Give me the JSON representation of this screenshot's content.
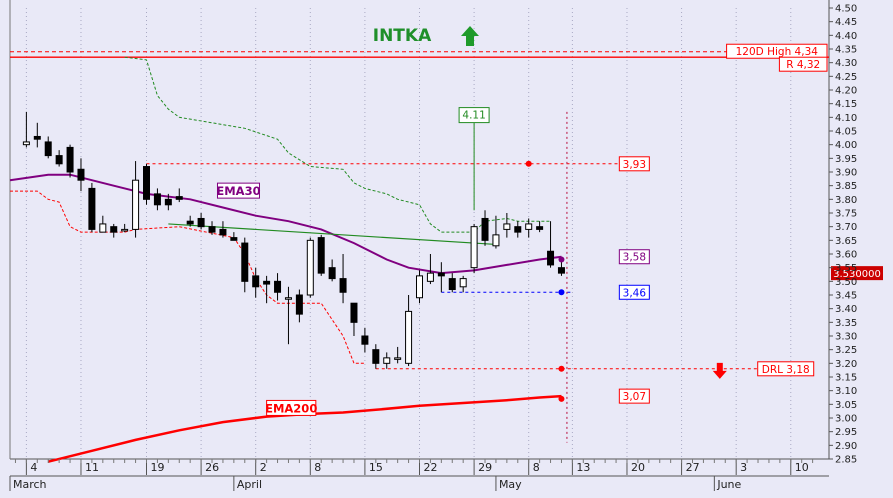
{
  "chart_data": {
    "type": "candlestick",
    "title": "INTKA",
    "trend_arrow": "up",
    "y_axis": {
      "range": [
        2.85,
        4.5
      ],
      "ticks": [
        2.85,
        2.9,
        2.95,
        3.0,
        3.05,
        3.1,
        3.15,
        3.2,
        3.25,
        3.3,
        3.35,
        3.4,
        3.45,
        3.5,
        3.55,
        3.6,
        3.65,
        3.7,
        3.75,
        3.8,
        3.85,
        3.9,
        3.95,
        4.0,
        4.05,
        4.1,
        4.15,
        4.2,
        4.25,
        4.3,
        4.35,
        4.4,
        4.45,
        4.5
      ],
      "tick_labels": [
        "2.85",
        "2.90",
        "2.95",
        "3.00",
        "3.05",
        "3.10",
        "3.15",
        "3.20",
        "3.25",
        "3.30",
        "3.35",
        "3.40",
        "3.45",
        "3.50",
        "3.55",
        "3.60",
        "3.65",
        "3.70",
        "3.75",
        "3.80",
        "3.85",
        "3.90",
        "3.95",
        "4.00",
        "4.05",
        "4.10",
        "4.15",
        "4.20",
        "4.25",
        "4.30",
        "4.35",
        "4.40",
        "4.45",
        "4.50"
      ],
      "position": "right"
    },
    "x_axis": {
      "day_labels": [
        "4",
        "11",
        "19",
        "26",
        "2",
        "8",
        "15",
        "22",
        "29",
        "8",
        "13",
        "20",
        "27",
        "3",
        "10"
      ],
      "day_positions": [
        0,
        5,
        11,
        16,
        21,
        26,
        31,
        36,
        41,
        46,
        50,
        55,
        60,
        65,
        70
      ],
      "month_labels": [
        {
          "label": "March",
          "pos": -1.5
        },
        {
          "label": "April",
          "pos": 19
        },
        {
          "label": "May",
          "pos": 43
        },
        {
          "label": "June",
          "pos": 63
        }
      ],
      "range": [
        -1.5,
        73.5
      ]
    },
    "candles": [
      {
        "o": 4.0,
        "h": 4.12,
        "l": 3.99,
        "c": 4.01
      },
      {
        "o": 4.03,
        "h": 4.08,
        "l": 3.99,
        "c": 4.02
      },
      {
        "o": 4.01,
        "h": 4.03,
        "l": 3.95,
        "c": 3.96
      },
      {
        "o": 3.96,
        "h": 3.98,
        "l": 3.92,
        "c": 3.93
      },
      {
        "o": 3.99,
        "h": 4.0,
        "l": 3.88,
        "c": 3.9
      },
      {
        "o": 3.91,
        "h": 3.95,
        "l": 3.83,
        "c": 3.87
      },
      {
        "o": 3.84,
        "h": 3.86,
        "l": 3.68,
        "c": 3.69
      },
      {
        "o": 3.68,
        "h": 3.74,
        "l": 3.68,
        "c": 3.71
      },
      {
        "o": 3.7,
        "h": 3.71,
        "l": 3.66,
        "c": 3.68
      },
      {
        "o": 3.69,
        "h": 3.71,
        "l": 3.68,
        "c": 3.69
      },
      {
        "o": 3.69,
        "h": 3.94,
        "l": 3.66,
        "c": 3.87
      },
      {
        "o": 3.92,
        "h": 3.93,
        "l": 3.78,
        "c": 3.8
      },
      {
        "o": 3.82,
        "h": 3.84,
        "l": 3.76,
        "c": 3.78
      },
      {
        "o": 3.8,
        "h": 3.82,
        "l": 3.76,
        "c": 3.78
      },
      {
        "o": 3.81,
        "h": 3.84,
        "l": 3.79,
        "c": 3.8
      },
      {
        "o": 3.72,
        "h": 3.74,
        "l": 3.7,
        "c": 3.71
      },
      {
        "o": 3.73,
        "h": 3.75,
        "l": 3.69,
        "c": 3.7
      },
      {
        "o": 3.7,
        "h": 3.72,
        "l": 3.67,
        "c": 3.68
      },
      {
        "o": 3.69,
        "h": 3.72,
        "l": 3.66,
        "c": 3.67
      },
      {
        "o": 3.66,
        "h": 3.68,
        "l": 3.65,
        "c": 3.65
      },
      {
        "o": 3.64,
        "h": 3.66,
        "l": 3.46,
        "c": 3.5
      },
      {
        "o": 3.52,
        "h": 3.55,
        "l": 3.44,
        "c": 3.48
      },
      {
        "o": 3.5,
        "h": 3.52,
        "l": 3.42,
        "c": 3.49
      },
      {
        "o": 3.5,
        "h": 3.53,
        "l": 3.43,
        "c": 3.46
      },
      {
        "o": 3.44,
        "h": 3.48,
        "l": 3.27,
        "c": 3.44
      },
      {
        "o": 3.45,
        "h": 3.47,
        "l": 3.35,
        "c": 3.38
      },
      {
        "o": 3.45,
        "h": 3.66,
        "l": 3.44,
        "c": 3.65
      },
      {
        "o": 3.66,
        "h": 3.67,
        "l": 3.52,
        "c": 3.53
      },
      {
        "o": 3.55,
        "h": 3.58,
        "l": 3.5,
        "c": 3.51
      },
      {
        "o": 3.51,
        "h": 3.6,
        "l": 3.42,
        "c": 3.46
      },
      {
        "o": 3.42,
        "h": 3.42,
        "l": 3.3,
        "c": 3.35
      },
      {
        "o": 3.3,
        "h": 3.33,
        "l": 3.24,
        "c": 3.27
      },
      {
        "o": 3.25,
        "h": 3.27,
        "l": 3.18,
        "c": 3.2
      },
      {
        "o": 3.2,
        "h": 3.24,
        "l": 3.18,
        "c": 3.22
      },
      {
        "o": 3.22,
        "h": 3.26,
        "l": 3.2,
        "c": 3.22
      },
      {
        "o": 3.2,
        "h": 3.45,
        "l": 3.19,
        "c": 3.39
      },
      {
        "o": 3.44,
        "h": 3.54,
        "l": 3.42,
        "c": 3.52
      },
      {
        "o": 3.5,
        "h": 3.6,
        "l": 3.49,
        "c": 3.53
      },
      {
        "o": 3.53,
        "h": 3.57,
        "l": 3.46,
        "c": 3.52
      },
      {
        "o": 3.51,
        "h": 3.53,
        "l": 3.46,
        "c": 3.47
      },
      {
        "o": 3.48,
        "h": 3.52,
        "l": 3.46,
        "c": 3.51
      },
      {
        "o": 3.55,
        "h": 3.71,
        "l": 3.53,
        "c": 3.7
      },
      {
        "o": 3.73,
        "h": 3.76,
        "l": 3.63,
        "c": 3.65
      },
      {
        "o": 3.63,
        "h": 3.74,
        "l": 3.62,
        "c": 3.67
      },
      {
        "o": 3.69,
        "h": 3.75,
        "l": 3.66,
        "c": 3.71
      },
      {
        "o": 3.7,
        "h": 3.72,
        "l": 3.66,
        "c": 3.68
      },
      {
        "o": 3.69,
        "h": 3.73,
        "l": 3.66,
        "c": 3.71
      },
      {
        "o": 3.7,
        "h": 3.72,
        "l": 3.68,
        "c": 3.69
      },
      {
        "o": 3.61,
        "h": 3.72,
        "l": 3.55,
        "c": 3.56
      },
      {
        "o": 3.55,
        "h": 3.58,
        "l": 3.52,
        "c": 3.53
      }
    ],
    "ema30": {
      "label": "EMA30",
      "color": "#800080",
      "points": [
        [
          -1.5,
          3.87
        ],
        [
          2,
          3.89
        ],
        [
          4,
          3.89
        ],
        [
          8,
          3.85
        ],
        [
          11,
          3.82
        ],
        [
          15,
          3.8
        ],
        [
          18,
          3.77
        ],
        [
          21,
          3.74
        ],
        [
          24,
          3.72
        ],
        [
          27,
          3.69
        ],
        [
          30,
          3.64
        ],
        [
          33,
          3.58
        ],
        [
          35,
          3.55
        ],
        [
          38,
          3.53
        ],
        [
          41,
          3.54
        ],
        [
          44,
          3.56
        ],
        [
          47,
          3.58
        ],
        [
          49,
          3.59
        ]
      ]
    },
    "ema200": {
      "label": "EMA200",
      "color": "#ff0000",
      "points": [
        [
          2,
          2.84
        ],
        [
          6,
          2.88
        ],
        [
          10,
          2.92
        ],
        [
          14,
          2.955
        ],
        [
          18,
          2.985
        ],
        [
          22,
          3.005
        ],
        [
          26,
          3.015
        ],
        [
          29,
          3.02
        ],
        [
          32,
          3.03
        ],
        [
          36,
          3.045
        ],
        [
          40,
          3.055
        ],
        [
          44,
          3.065
        ],
        [
          47,
          3.075
        ],
        [
          49,
          3.08
        ]
      ]
    },
    "lines": {
      "high120d": {
        "label": "120D High 4,34",
        "value": 4.34,
        "color": "#ff0000"
      },
      "resistance": {
        "label": "R 4,32",
        "value": 4.32,
        "color": "#ff0000"
      },
      "drl": {
        "label": "DRL 3,18",
        "value": 3.18,
        "color": "#ff0000"
      }
    },
    "green_trendline": {
      "from": [
        13,
        3.71
      ],
      "to": [
        43,
        3.635
      ],
      "color": "#228b22"
    },
    "green_dashed_stop": {
      "color": "#228b22",
      "points": [
        [
          9,
          4.32
        ],
        [
          11,
          4.31
        ],
        [
          12,
          4.18
        ],
        [
          13,
          4.13
        ],
        [
          14,
          4.1
        ],
        [
          17,
          4.08
        ],
        [
          20,
          4.06
        ],
        [
          23,
          4.02
        ],
        [
          24,
          3.97
        ],
        [
          26,
          3.92
        ],
        [
          29,
          3.91
        ],
        [
          30,
          3.86
        ],
        [
          31,
          3.84
        ],
        [
          33,
          3.82
        ],
        [
          34,
          3.8
        ],
        [
          36,
          3.78
        ],
        [
          37,
          3.71
        ],
        [
          38,
          3.68
        ],
        [
          41,
          3.68
        ],
        [
          42,
          3.72
        ],
        [
          44,
          3.73
        ],
        [
          45,
          3.72
        ],
        [
          47,
          3.72
        ],
        [
          48,
          3.72
        ]
      ]
    },
    "red_dashed_support": {
      "color": "#ff0000",
      "points": [
        [
          -1.5,
          3.83
        ],
        [
          1,
          3.83
        ],
        [
          2,
          3.8
        ],
        [
          3,
          3.79
        ],
        [
          4,
          3.7
        ],
        [
          5,
          3.68
        ],
        [
          9,
          3.68
        ],
        [
          10,
          3.69
        ],
        [
          14,
          3.7
        ],
        [
          19,
          3.66
        ],
        [
          20,
          3.6
        ],
        [
          21,
          3.51
        ],
        [
          22,
          3.45
        ],
        [
          23,
          3.42
        ],
        [
          27,
          3.42
        ],
        [
          28,
          3.36
        ],
        [
          29,
          3.3
        ],
        [
          30,
          3.2
        ],
        [
          31,
          3.2
        ]
      ]
    },
    "annotations": {
      "level_393": {
        "label": "3,93",
        "value": 3.93,
        "from": 11,
        "to": 57,
        "dot": 46,
        "color": "#ff0000"
      },
      "level_358": {
        "label": "3,58",
        "value": 3.58,
        "dot": 49,
        "color": "#800080"
      },
      "level_346": {
        "label": "3,46",
        "value": 3.46,
        "from": 38,
        "to": 50,
        "dot": 49,
        "color": "#0000ff"
      },
      "level_318": {
        "label": "3,18",
        "value": 3.18,
        "from": 32,
        "to": 68,
        "dot": 49,
        "color": "#ff0000"
      },
      "level_307": {
        "label": "3,07",
        "value": 3.07,
        "dot": 49,
        "color": "#ff0000"
      },
      "peak_411": {
        "label": "4.11",
        "value": 4.11,
        "at": 41,
        "anchor": 3.76,
        "color": "#228b22"
      },
      "price_tag": {
        "label": "3.530000",
        "value": 3.53,
        "color": "#cc0000"
      },
      "down_arrow_at": 63.5,
      "vertical_dotted_at": 49.5
    },
    "legend": {
      "ema30_label_pos": [
        17.5,
        3.83
      ],
      "ema200_label_pos": [
        22,
        3.035
      ]
    }
  }
}
